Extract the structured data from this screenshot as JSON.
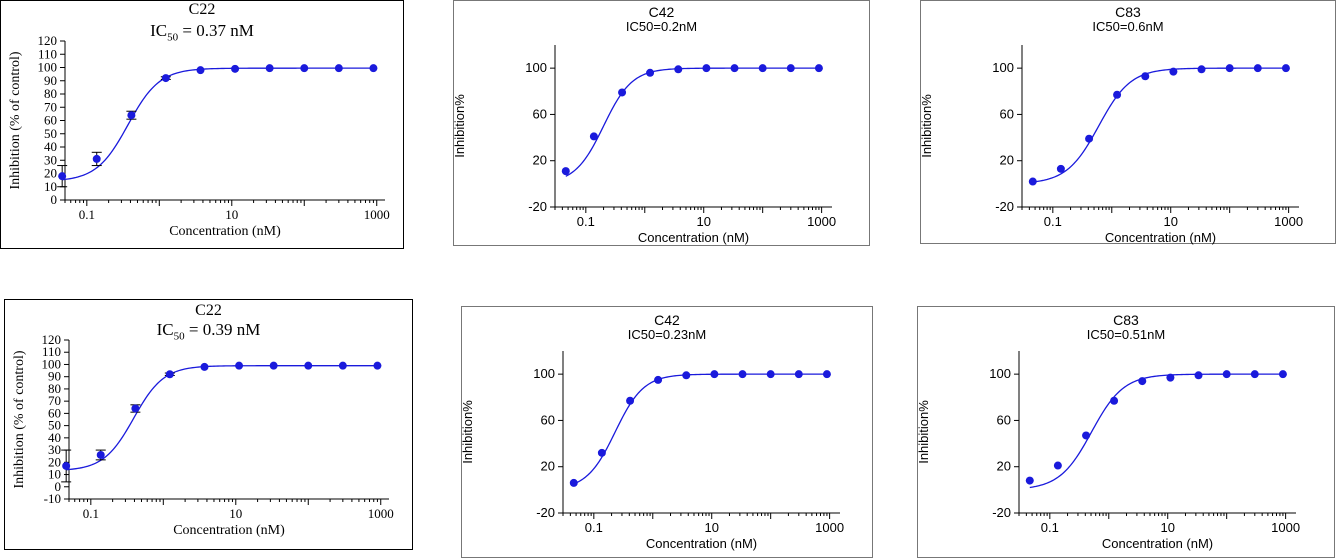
{
  "colors": {
    "curve": "#1a1adc",
    "point": "#1a1adc",
    "axis": "#000000",
    "frame": "#000000",
    "frame_light": "#777777"
  },
  "chart_data": [
    {
      "type": "scatter",
      "title": "C22",
      "subtitle_prefix": "IC",
      "subtitle_sub": "50",
      "subtitle_suffix": " = 0.37 nM",
      "xlabel": "Concentration (nM)",
      "ylabel": "Inhibition (% of control)",
      "x_scale": "log",
      "xlim": [
        0.05,
        1300
      ],
      "ylim": [
        0,
        120
      ],
      "x_ticks": [
        0.1,
        10,
        1000
      ],
      "x_tick_labels": [
        "0.1",
        "10",
        "1000"
      ],
      "y_ticks": [
        0,
        10,
        20,
        30,
        40,
        50,
        60,
        70,
        80,
        90,
        100,
        110,
        120
      ],
      "y_tick_labels": [
        "0",
        "10",
        "20",
        "30",
        "40",
        "50",
        "60",
        "70",
        "80",
        "90",
        "100",
        "110",
        "120"
      ],
      "grid": false,
      "curve": {
        "ic50": 0.37,
        "hill": 2.0,
        "bottom": 14,
        "top": 99.5
      },
      "x": [
        0.0457,
        0.137,
        0.412,
        1.23,
        3.7,
        11.1,
        33.3,
        100,
        300,
        900
      ],
      "y": [
        18,
        31,
        64,
        92,
        98,
        99,
        99.5,
        99.5,
        99.5,
        99.5
      ],
      "err": [
        8,
        5,
        3,
        1,
        0.5,
        0.5,
        0.5,
        0.5,
        0.5,
        0.5
      ]
    },
    {
      "type": "scatter",
      "title": "C42",
      "subtitle": "IC50=0.2nM",
      "xlabel": "Concentration (nM)",
      "ylabel": "Inhibition%",
      "x_scale": "log",
      "xlim": [
        0.03,
        1500
      ],
      "ylim": [
        -20,
        120
      ],
      "x_ticks": [
        0.1,
        10,
        1000
      ],
      "x_tick_labels": [
        "0.1",
        "10",
        "1000"
      ],
      "y_ticks": [
        -20,
        20,
        60,
        100
      ],
      "y_tick_labels": [
        "-20",
        "20",
        "60",
        "100"
      ],
      "grid": false,
      "curve": {
        "ic50": 0.2,
        "hill": 1.8,
        "bottom": 0,
        "top": 100
      },
      "x": [
        0.0457,
        0.137,
        0.412,
        1.23,
        3.7,
        11.1,
        33.3,
        100,
        300,
        900
      ],
      "y": [
        11,
        41,
        79,
        96,
        99,
        100,
        100,
        100,
        100,
        100
      ]
    },
    {
      "type": "scatter",
      "title": "C83",
      "subtitle": "IC50=0.6nM",
      "xlabel": "Concentration (nM)",
      "ylabel": "Inhibition%",
      "x_scale": "log",
      "xlim": [
        0.03,
        1500
      ],
      "ylim": [
        -20,
        120
      ],
      "x_ticks": [
        0.1,
        10,
        1000
      ],
      "x_tick_labels": [
        "0.1",
        "10",
        "1000"
      ],
      "y_ticks": [
        -20,
        20,
        60,
        100
      ],
      "y_tick_labels": [
        "-20",
        "20",
        "60",
        "100"
      ],
      "grid": false,
      "curve": {
        "ic50": 0.6,
        "hill": 1.6,
        "bottom": 0,
        "top": 100
      },
      "x": [
        0.0457,
        0.137,
        0.412,
        1.23,
        3.7,
        11.1,
        33.3,
        100,
        300,
        900
      ],
      "y": [
        2,
        13,
        39,
        77,
        93,
        97,
        99,
        100,
        100,
        100
      ]
    },
    {
      "type": "scatter",
      "title": "C22",
      "subtitle_prefix": "IC",
      "subtitle_sub": "50",
      "subtitle_suffix": " = 0.39 nM",
      "xlabel": "Concentration (nM)",
      "ylabel": "Inhibition (% of control)",
      "x_scale": "log",
      "xlim": [
        0.05,
        1300
      ],
      "ylim": [
        -10,
        120
      ],
      "x_ticks": [
        0.1,
        10,
        1000
      ],
      "x_tick_labels": [
        "0.1",
        "10",
        "1000"
      ],
      "y_ticks": [
        -10,
        0,
        10,
        20,
        30,
        40,
        50,
        60,
        70,
        80,
        90,
        100,
        110,
        120
      ],
      "y_tick_labels": [
        "-10",
        "0",
        "10",
        "20",
        "30",
        "40",
        "50",
        "60",
        "70",
        "80",
        "90",
        "100",
        "110",
        "120"
      ],
      "grid": false,
      "curve": {
        "ic50": 0.39,
        "hill": 2.1,
        "bottom": 13,
        "top": 99
      },
      "x": [
        0.0457,
        0.137,
        0.412,
        1.23,
        3.7,
        11.1,
        33.3,
        100,
        300,
        900
      ],
      "y": [
        17,
        26,
        64,
        92,
        98,
        99,
        99,
        99,
        99,
        99
      ],
      "err": [
        13,
        4,
        3,
        1,
        0.5,
        0.5,
        0.5,
        0.5,
        0.5,
        0.5
      ]
    },
    {
      "type": "scatter",
      "title": "C42",
      "subtitle": "IC50=0.23nM",
      "xlabel": "Concentration (nM)",
      "ylabel": "Inhibition%",
      "x_scale": "log",
      "xlim": [
        0.03,
        1500
      ],
      "ylim": [
        -20,
        120
      ],
      "x_ticks": [
        0.1,
        10,
        1000
      ],
      "x_tick_labels": [
        "0.1",
        "10",
        "1000"
      ],
      "y_ticks": [
        -20,
        20,
        60,
        100
      ],
      "y_tick_labels": [
        "-20",
        "20",
        "60",
        "100"
      ],
      "grid": false,
      "curve": {
        "ic50": 0.23,
        "hill": 1.8,
        "bottom": 0,
        "top": 100
      },
      "x": [
        0.0457,
        0.137,
        0.412,
        1.23,
        3.7,
        11.1,
        33.3,
        100,
        300,
        900
      ],
      "y": [
        6,
        32,
        77,
        95,
        99,
        100,
        100,
        100,
        100,
        100
      ]
    },
    {
      "type": "scatter",
      "title": "C83",
      "subtitle": "IC50=0.51nM",
      "xlabel": "Concentration (nM)",
      "ylabel": "Inhibition%",
      "x_scale": "log",
      "xlim": [
        0.03,
        1500
      ],
      "ylim": [
        -20,
        120
      ],
      "x_ticks": [
        0.1,
        10,
        1000
      ],
      "x_tick_labels": [
        "0.1",
        "10",
        "1000"
      ],
      "y_ticks": [
        -20,
        20,
        60,
        100
      ],
      "y_tick_labels": [
        "-20",
        "20",
        "60",
        "100"
      ],
      "grid": false,
      "curve": {
        "ic50": 0.51,
        "hill": 1.6,
        "bottom": 0,
        "top": 100
      },
      "x": [
        0.0457,
        0.137,
        0.412,
        1.23,
        3.7,
        11.1,
        33.3,
        100,
        300,
        900
      ],
      "y": [
        8,
        21,
        47,
        77,
        94,
        97,
        99,
        100,
        100,
        100
      ]
    }
  ]
}
